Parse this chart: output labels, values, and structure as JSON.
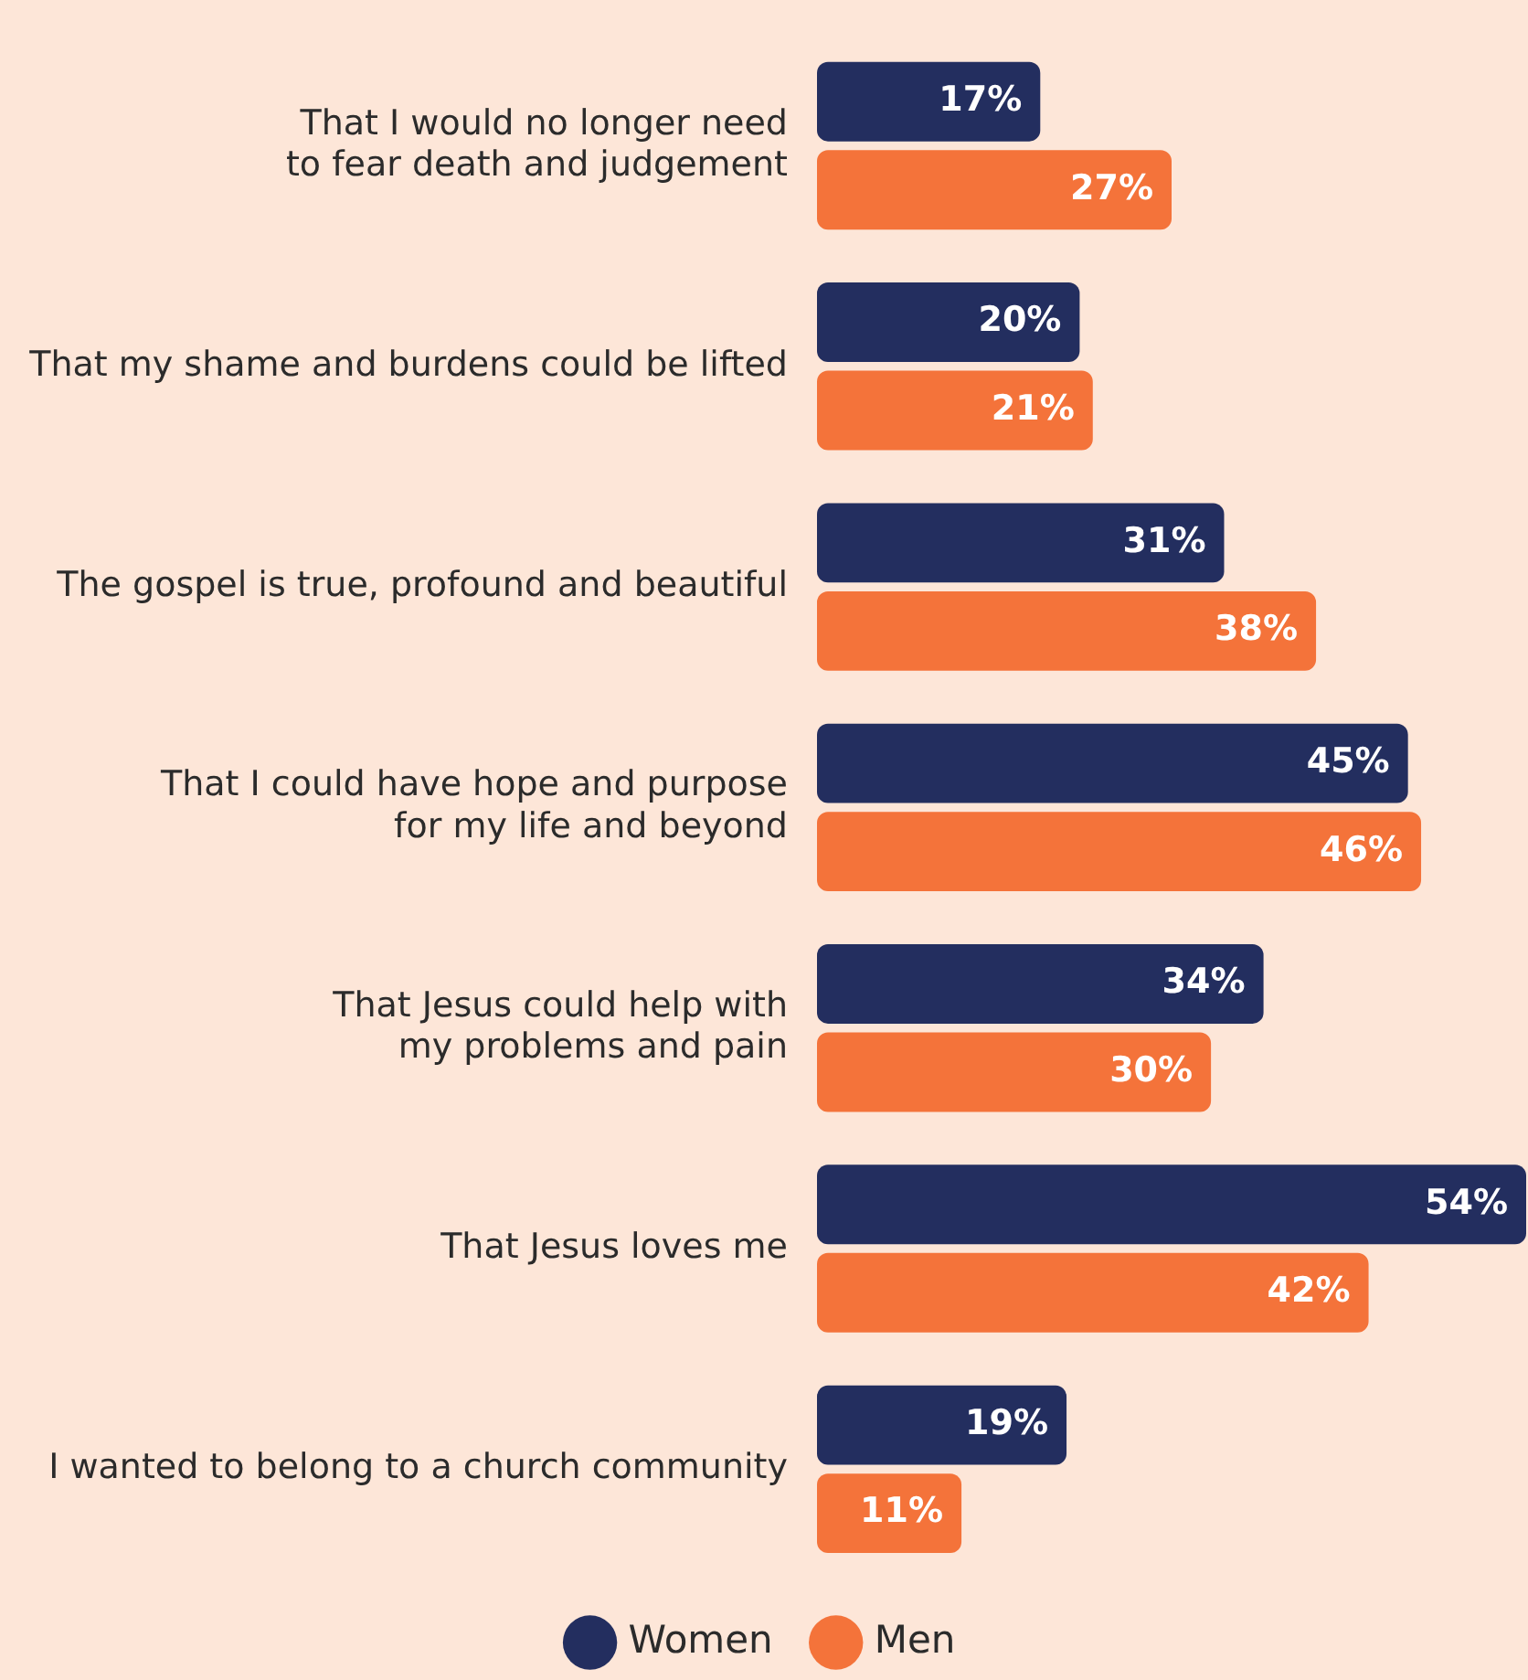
{
  "chart_data": {
    "type": "bar",
    "orientation": "horizontal",
    "categories": [
      "That I would no longer need\nto fear death and judgement",
      "That my shame and burdens could be lifted",
      "The gospel is true, profound and beautiful",
      "That I could have hope and purpose\nfor my life and beyond",
      "That Jesus could help with\nmy problems and pain",
      "That Jesus loves me",
      "I wanted to belong to a church community"
    ],
    "series": [
      {
        "name": "Women",
        "color": "#232e5f",
        "values": [
          17,
          20,
          31,
          45,
          34,
          54,
          19
        ],
        "value_labels": [
          "17%",
          "20%",
          "31%",
          "45%",
          "34%",
          "54%",
          "19%"
        ]
      },
      {
        "name": "Men",
        "color": "#f4733a",
        "values": [
          27,
          21,
          38,
          46,
          30,
          42,
          11
        ],
        "value_labels": [
          "27%",
          "21%",
          "38%",
          "46%",
          "30%",
          "42%",
          "11%"
        ]
      }
    ],
    "legend": "bottom",
    "tick_labels": "y"
  }
}
